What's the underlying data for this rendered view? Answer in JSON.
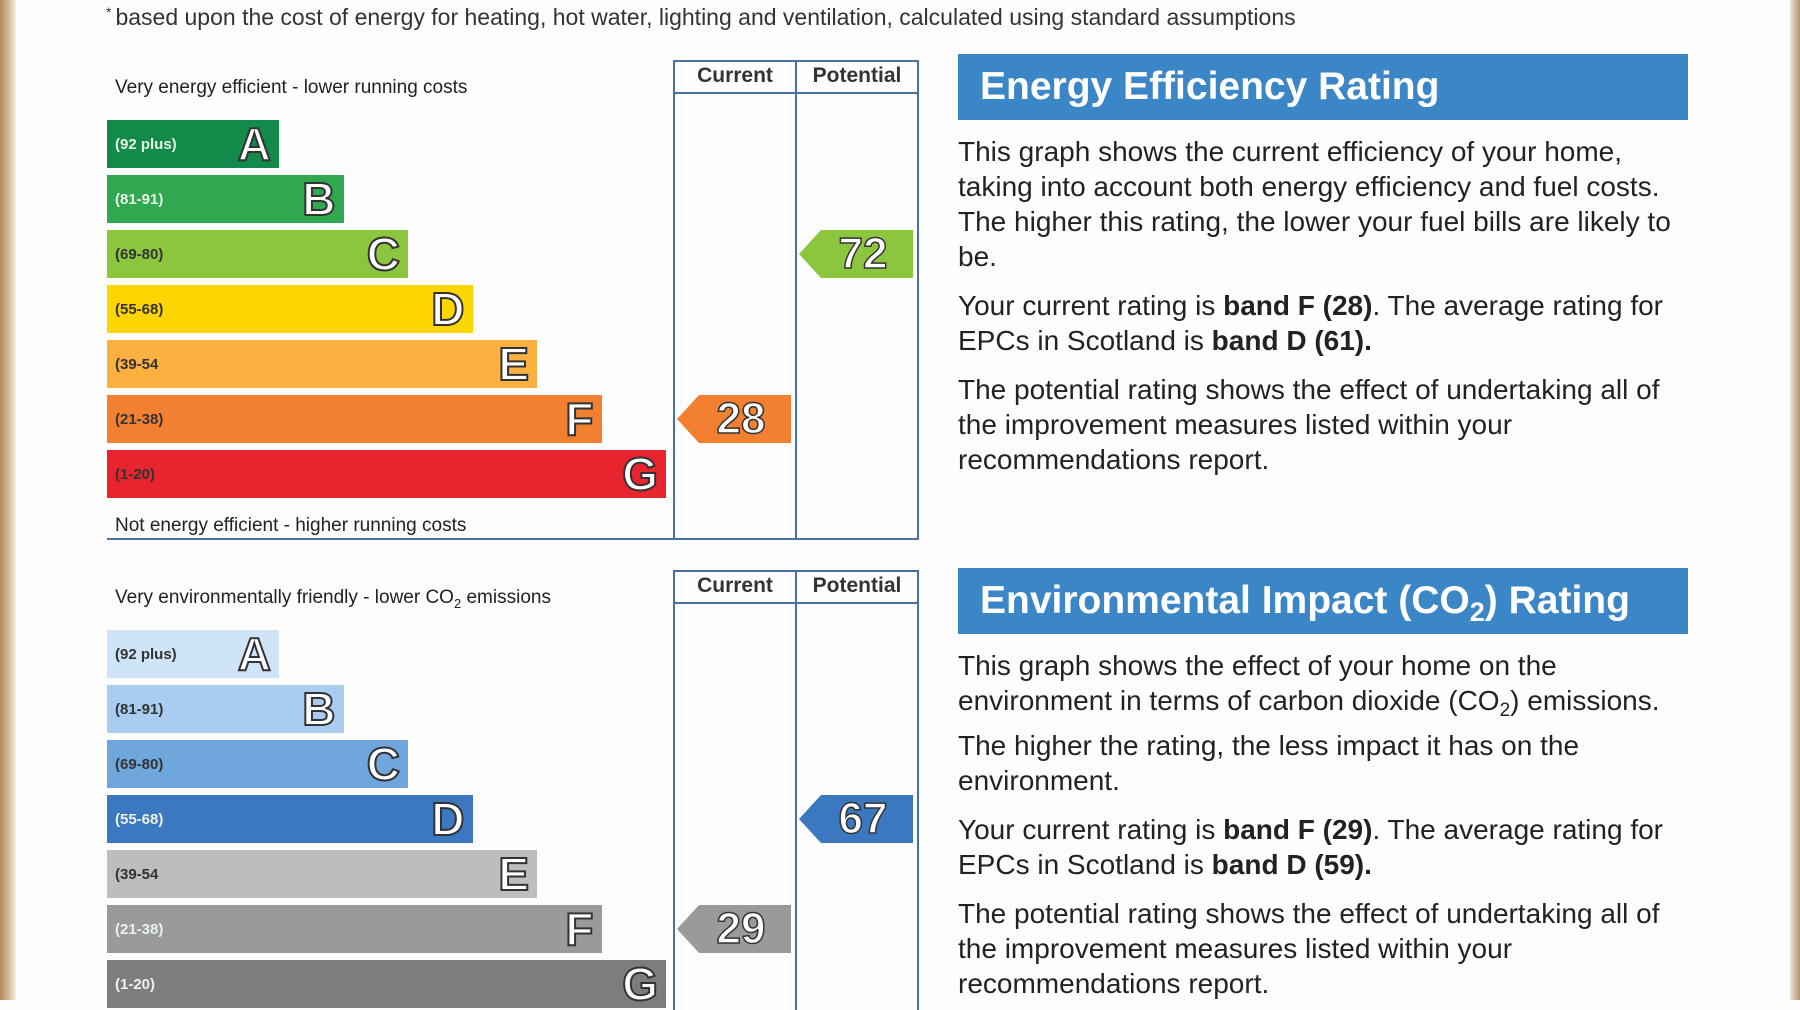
{
  "footnote": "based upon the cost of energy for heating, hot water, lighting and ventilation, calculated using standard assumptions",
  "energy_efficiency": {
    "top_label": "Very energy efficient - lower running costs",
    "bottom_label": "Not energy efficient - higher running costs",
    "col_current": "Current",
    "col_potential": "Potential",
    "bands": [
      {
        "letter": "A",
        "range": "(92 plus)",
        "color": "#128a4a"
      },
      {
        "letter": "B",
        "range": "(81-91)",
        "color": "#2fa84f"
      },
      {
        "letter": "C",
        "range": "(69-80)",
        "color": "#8cc63f"
      },
      {
        "letter": "D",
        "range": "(55-68)",
        "color": "#ffd500"
      },
      {
        "letter": "E",
        "range": "(39-54",
        "color": "#fbb040"
      },
      {
        "letter": "F",
        "range": "(21-38)",
        "color": "#f37f31"
      },
      {
        "letter": "G",
        "range": "(1-20)",
        "color": "#e8242e"
      }
    ],
    "current": {
      "value": "28",
      "band": "F",
      "color": "#f37f31"
    },
    "potential": {
      "value": "72",
      "band": "C",
      "color": "#8cc63f"
    },
    "header": "Energy Efficiency Rating",
    "p1": "This graph shows the current efficiency of your home, taking into account both energy efficiency and fuel costs. The higher this rating, the lower your fuel bills are likely to be.",
    "p2_pre": "Your current rating is ",
    "p2_band": "band F (28)",
    "p2_mid": ". The average rating for EPCs in Scotland is ",
    "p2_avg": "band D (61).",
    "p3": "The potential rating shows the effect of undertaking all of the improvement measures listed within your recommendations report."
  },
  "environmental_impact": {
    "top_label_pre": "Very environmentally friendly - lower CO",
    "top_label_sub": "2",
    "top_label_post": " emissions",
    "col_current": "Current",
    "col_potential": "Potential",
    "bands": [
      {
        "letter": "A",
        "range": "(92 plus)",
        "color": "#cfe4f7"
      },
      {
        "letter": "B",
        "range": "(81-91)",
        "color": "#a9cdf0"
      },
      {
        "letter": "C",
        "range": "(69-80)",
        "color": "#6fa7dd"
      },
      {
        "letter": "D",
        "range": "(55-68)",
        "color": "#3c78c0"
      },
      {
        "letter": "E",
        "range": "(39-54",
        "color": "#bdbdbd"
      },
      {
        "letter": "F",
        "range": "(21-38)",
        "color": "#9a9a9a"
      },
      {
        "letter": "G",
        "range": "(1-20)",
        "color": "#7d7d7d"
      }
    ],
    "current": {
      "value": "29",
      "band": "F",
      "color": "#9a9a9a"
    },
    "potential": {
      "value": "67",
      "band": "D",
      "color": "#3c78c0"
    },
    "header_pre": "Environmental Impact (CO",
    "header_sub": "2",
    "header_post": ") Rating",
    "p1_pre": "This graph shows the effect of your home on the environment in terms of carbon dioxide (CO",
    "p1_sub": "2",
    "p1_post": ") emissions. The higher the rating, the less impact it has on the environment.",
    "p2_pre": "Your current rating is ",
    "p2_band": "band F (29)",
    "p2_mid": ". The average rating for EPCs in Scotland is ",
    "p2_avg": "band D (59).",
    "p3": "The potential rating shows the effect of undertaking all of the improvement measures listed within your recommendations report."
  }
}
